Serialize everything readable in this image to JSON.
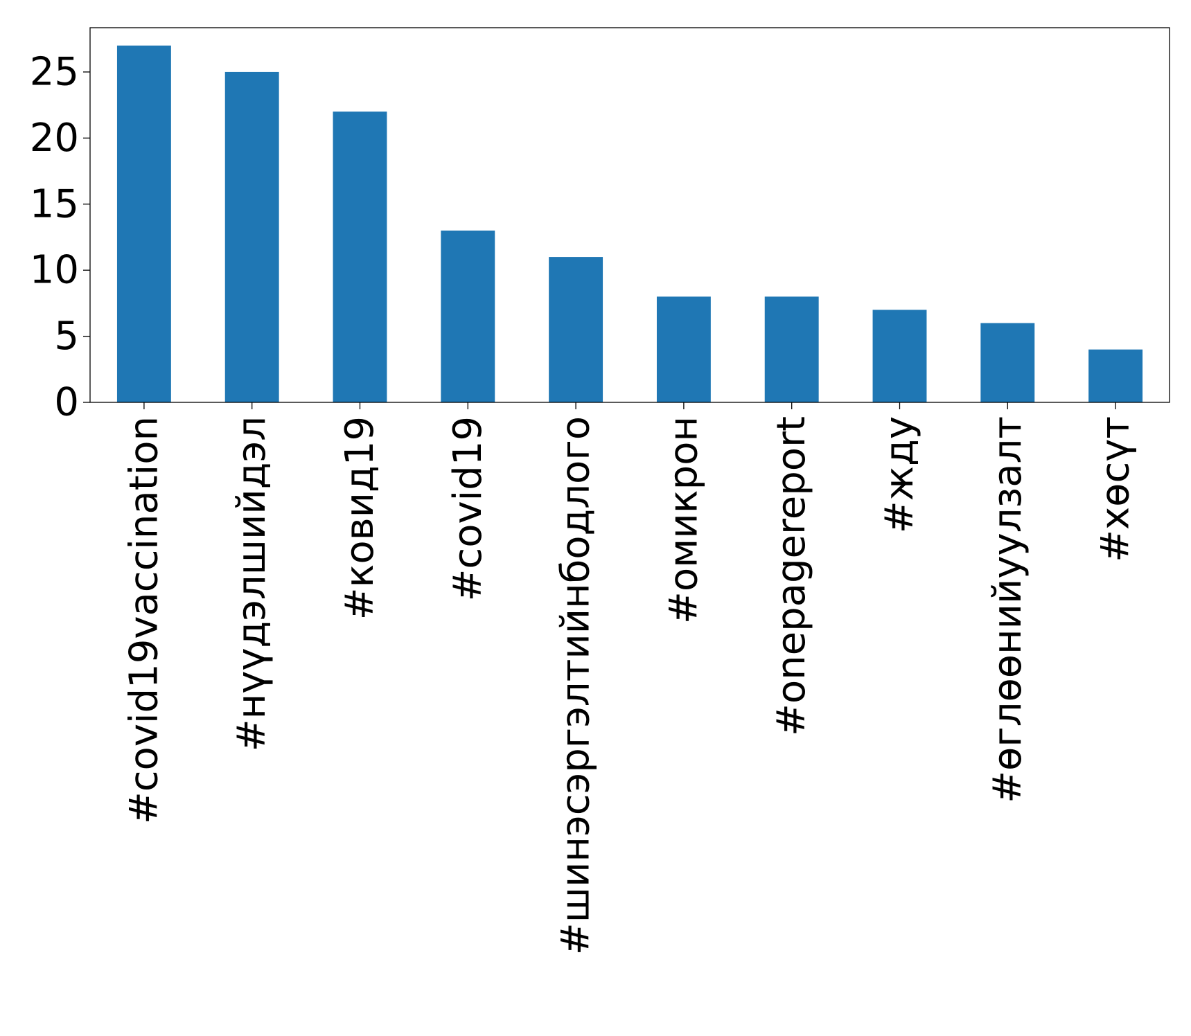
{
  "chart_data": {
    "type": "bar",
    "categories": [
      "#covid19vaccination",
      "#нүүдэлшийдэл",
      "#ковид19",
      "#covid19",
      "#шинэсэргэлтийнбодлого",
      "#омикрон",
      "#onepagereport",
      "#жду",
      "#өглөөнийуулзалт",
      "#хөсүт"
    ],
    "values": [
      27,
      25,
      22,
      13,
      11,
      8,
      8,
      7,
      6,
      4
    ],
    "title": "",
    "xlabel": "",
    "ylabel": "",
    "ylim": [
      0,
      28.35
    ],
    "yticks": [
      "0",
      "5",
      "10",
      "15",
      "20",
      "25"
    ],
    "grid": false,
    "legend": "none",
    "bar_color": "#1f77b4"
  }
}
